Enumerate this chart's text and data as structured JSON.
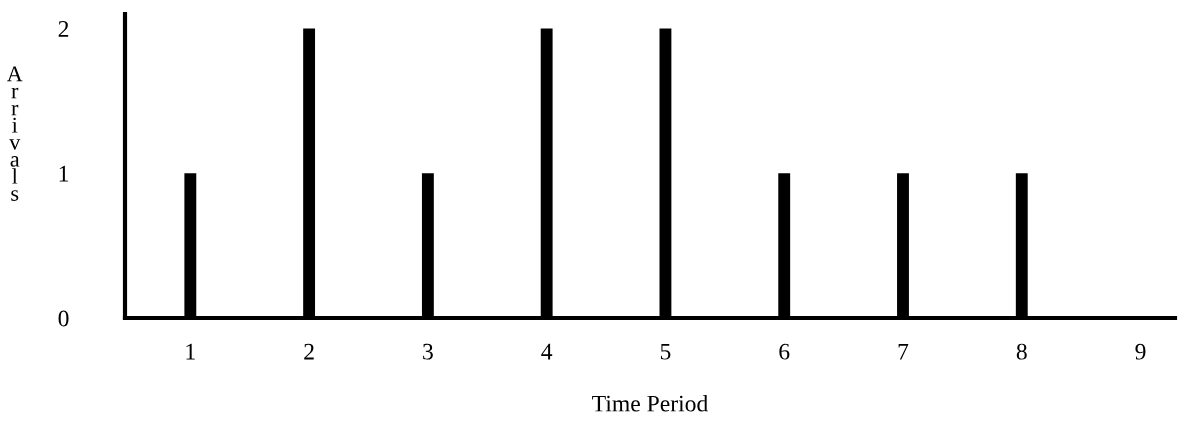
{
  "chart_data": {
    "type": "bar",
    "xlabel": "Time Period",
    "ylabel": "Arrivals",
    "categories": [
      "1",
      "2",
      "3",
      "4",
      "5",
      "6",
      "7",
      "8",
      "9"
    ],
    "values": [
      1,
      2,
      1,
      2,
      2,
      1,
      1,
      1,
      0
    ],
    "color": "#000000",
    "ylim": [
      0,
      2.1
    ],
    "yticks": [
      0,
      1,
      2
    ],
    "grid": false,
    "legend": false
  }
}
